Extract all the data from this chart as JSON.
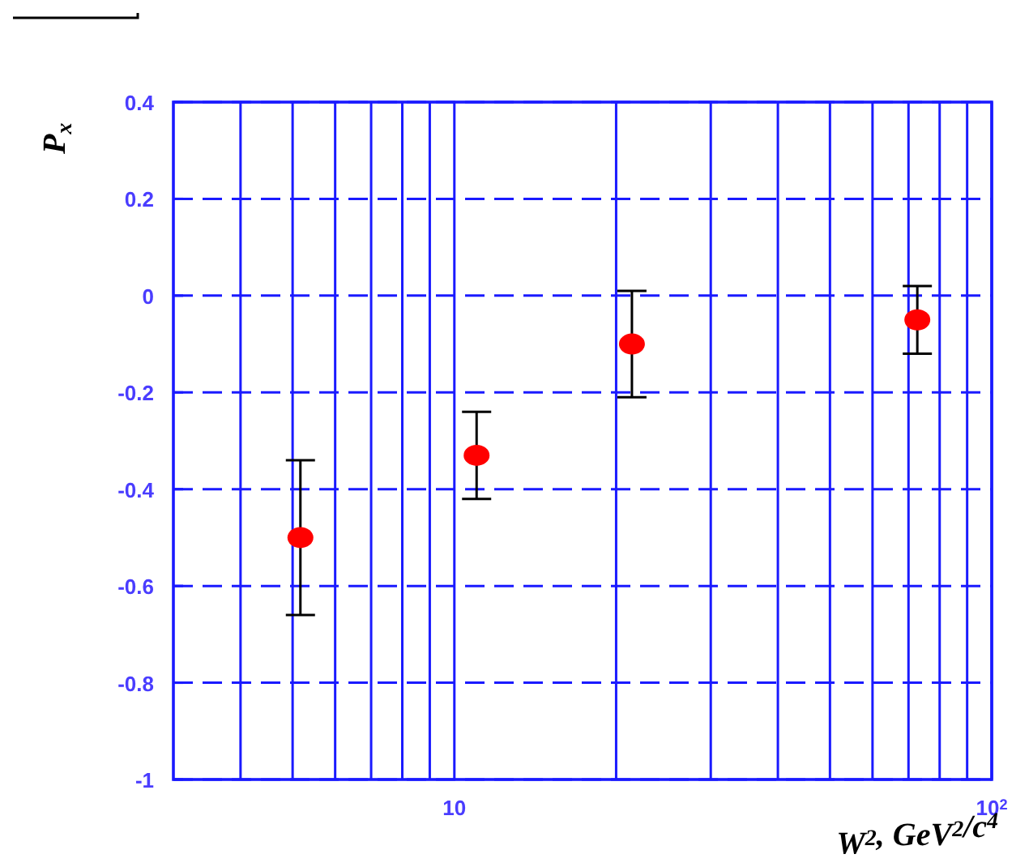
{
  "chart_data": {
    "type": "scatter",
    "xlabel": "W$^{2}$, GeV$^{2}$/c$^{4}$",
    "ylabel": "P$_{x}$",
    "x": [
      5.17,
      11.0,
      21.4,
      72.7
    ],
    "series": [
      {
        "color": "#ff0000",
        "values": [
          -0.5,
          -0.33,
          -0.1,
          -0.05
        ],
        "errors": [
          [
            -0.66,
            -0.34
          ],
          [
            -0.42,
            -0.24
          ],
          [
            -0.21,
            0.01
          ],
          [
            -0.12,
            0.02
          ]
        ]
      }
    ],
    "log": "x",
    "xlim": [
      3,
      100
    ],
    "ylim": [
      -1,
      0.4
    ],
    "xticks": [
      {
        "value": 4,
        "label": null
      },
      {
        "value": 5,
        "label": null
      },
      {
        "value": 6,
        "label": null
      },
      {
        "value": 7,
        "label": null
      },
      {
        "value": 8,
        "label": null
      },
      {
        "value": 9,
        "label": null
      },
      10,
      {
        "value": 20,
        "label": null
      },
      {
        "value": 30,
        "label": null
      },
      {
        "value": 40,
        "label": null
      },
      {
        "value": 50,
        "label": null
      },
      {
        "value": 60,
        "label": null
      },
      {
        "value": 70,
        "label": null
      },
      {
        "value": 80,
        "label": null
      },
      {
        "value": 90,
        "label": null
      },
      {
        "value": 100,
        "label": "10$^{2}$"
      }
    ],
    "yticks": [
      {
        "value": 0.4,
        "label": "0.4"
      },
      {
        "value": 0.2,
        "label": "0.2"
      },
      0,
      {
        "value": -0.2,
        "label": "-0.2"
      },
      {
        "value": -0.4,
        "label": "-0.4"
      },
      {
        "value": -0.6,
        "label": "-0.6"
      },
      {
        "value": -0.8,
        "label": "-0.8"
      },
      -1
    ],
    "grid": true,
    "marker": "circle"
  }
}
